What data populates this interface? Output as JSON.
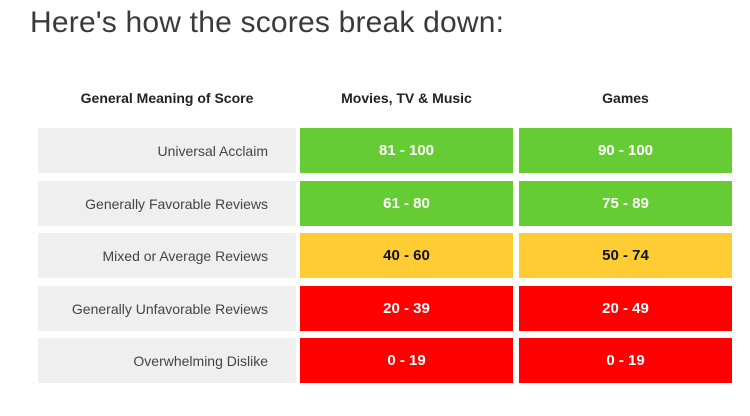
{
  "heading": "Here's how the scores break down:",
  "headers": {
    "meaning": "General Meaning of Score",
    "movies": "Movies, TV & Music",
    "games": "Games"
  },
  "rows": [
    {
      "label": "Universal Acclaim",
      "movies": "81 - 100",
      "games": "90 - 100",
      "color": "#66cc33",
      "text_color": "#ffffff"
    },
    {
      "label": "Generally Favorable Reviews",
      "movies": "61 - 80",
      "games": "75 - 89",
      "color": "#66cc33",
      "text_color": "#ffffff"
    },
    {
      "label": "Mixed or Average Reviews",
      "movies": "40 - 60",
      "games": "50 - 74",
      "color": "#ffcc33",
      "text_color": "#111111"
    },
    {
      "label": "Generally Unfavorable Reviews",
      "movies": "20 - 39",
      "games": "20 - 49",
      "color": "#ff0000",
      "text_color": "#ffffff"
    },
    {
      "label": "Overwhelming Dislike",
      "movies": "0 - 19",
      "games": "0 - 19",
      "color": "#ff0000",
      "text_color": "#ffffff"
    }
  ]
}
